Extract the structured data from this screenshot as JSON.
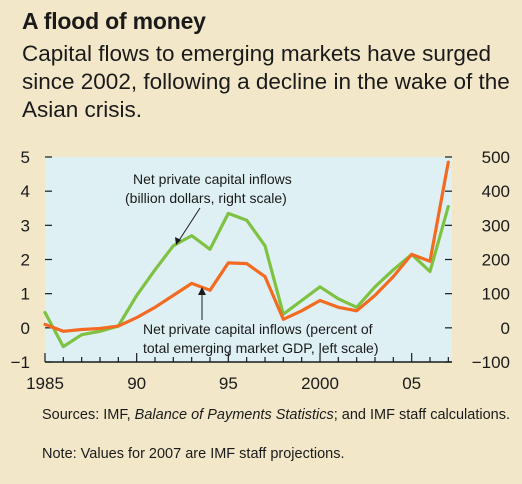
{
  "header": {
    "title": "A flood of money",
    "subtitle": "Capital flows to emerging markets have surged since 2002, following a decline in the wake of the Asian crisis."
  },
  "footer": {
    "sources_prefix": "Sources: IMF, ",
    "sources_italic": "Balance of Payments Statistics",
    "sources_suffix": "; and IMF staff calculations.",
    "note": "Note: Values for 2007 are IMF staff projections."
  },
  "colors": {
    "plot_background": "#dff0f5",
    "page_background": "#f2e8c9",
    "billion_series": "#7ec242",
    "percent_series": "#f26b21",
    "axis": "#1a1a1a"
  },
  "chart_data": {
    "type": "line",
    "title": "",
    "grid": false,
    "x_ticks": [
      {
        "value": 1985,
        "label": "1985"
      },
      {
        "value": 1990,
        "label": "90"
      },
      {
        "value": 1995,
        "label": "95"
      },
      {
        "value": 2000,
        "label": "2000"
      },
      {
        "value": 2005,
        "label": "05"
      }
    ],
    "xlim": [
      1985,
      2007.2
    ],
    "y_left": {
      "ylim": [
        -1,
        5
      ],
      "ticks": [
        "−1",
        "0",
        "1",
        "2",
        "3",
        "4",
        "5"
      ]
    },
    "y_right": {
      "ylim": [
        -100,
        500
      ],
      "ticks": [
        "−100",
        "0",
        "100",
        "200",
        "300",
        "400",
        "500"
      ]
    },
    "x": [
      1985,
      1986,
      1987,
      1988,
      1989,
      1990,
      1991,
      1992,
      1993,
      1994,
      1995,
      1996,
      1997,
      1998,
      1999,
      2000,
      2001,
      2002,
      2003,
      2004,
      2005,
      2006,
      2007
    ],
    "series": [
      {
        "name": "Net private capital inflows (billion dollars, right scale)",
        "label_lines": [
          "Net private capital inflows",
          "(billion dollars, right scale)"
        ],
        "axis": "right",
        "values": [
          45,
          -55,
          -20,
          -10,
          5,
          95,
          170,
          240,
          270,
          230,
          335,
          315,
          240,
          40,
          80,
          120,
          85,
          60,
          120,
          170,
          215,
          165,
          355
        ]
      },
      {
        "name": "Net private capital inflows (percent of total emerging market GDP, left scale)",
        "label_lines": [
          "Net private capital inflows (percent of",
          "total emerging market GDP, left scale)"
        ],
        "axis": "left",
        "values": [
          0.1,
          -0.1,
          -0.05,
          -0.02,
          0.05,
          0.3,
          0.6,
          0.95,
          1.3,
          1.1,
          1.9,
          1.88,
          1.5,
          0.25,
          0.5,
          0.8,
          0.6,
          0.5,
          0.95,
          1.5,
          2.15,
          1.95,
          4.85
        ]
      }
    ]
  }
}
